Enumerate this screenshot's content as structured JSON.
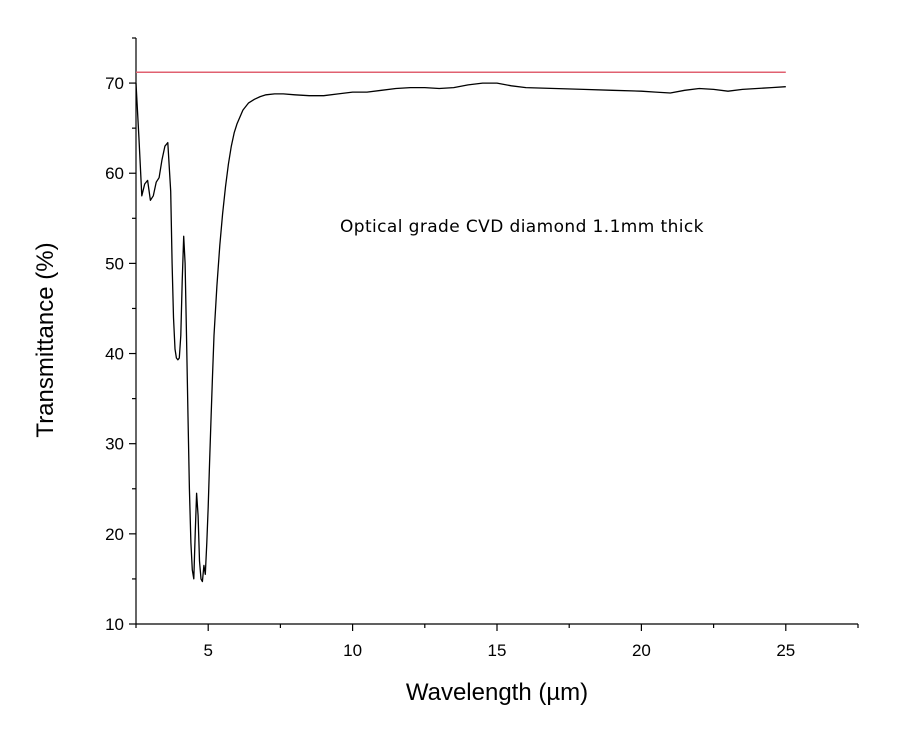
{
  "chart_data": {
    "type": "line",
    "xlabel": "Wavelength (µm)",
    "ylabel": "Transmittance (%)",
    "xlim": [
      2.5,
      27.5
    ],
    "ylim": [
      10,
      75
    ],
    "xticks": [
      5,
      10,
      15,
      20,
      25
    ],
    "xtick_labels": [
      "5",
      "10",
      "15",
      "20",
      "25"
    ],
    "yticks": [
      10,
      20,
      30,
      40,
      50,
      60,
      70
    ],
    "ytick_labels": [
      "10",
      "20",
      "30",
      "40",
      "50",
      "60",
      "70"
    ],
    "grid": false,
    "annotation": "Optical grade CVD diamond 1.1mm thick",
    "colors": {
      "measured": "#000000",
      "reference": "#e06070"
    },
    "series": [
      {
        "x": [
          2.5,
          2.6,
          2.7,
          2.8,
          2.9,
          3.0,
          3.1,
          3.2,
          3.3,
          3.4,
          3.5,
          3.6,
          3.7,
          3.75,
          3.8,
          3.85,
          3.9,
          3.95,
          4.0,
          4.05,
          4.1,
          4.15,
          4.2,
          4.25,
          4.3,
          4.35,
          4.4,
          4.45,
          4.5,
          4.55,
          4.6,
          4.65,
          4.7,
          4.75,
          4.8,
          4.85,
          4.9,
          4.95,
          5.0,
          5.05,
          5.1,
          5.15,
          5.2,
          5.3,
          5.4,
          5.5,
          5.6,
          5.7,
          5.8,
          5.9,
          6.0,
          6.2,
          6.4,
          6.6,
          6.8,
          7.0,
          7.3,
          7.6,
          8.0,
          8.5,
          9.0,
          9.5,
          10.0,
          10.5,
          11.0,
          11.5,
          12.0,
          12.5,
          13.0,
          13.5,
          14.0,
          14.5,
          15.0,
          15.5,
          16.0,
          17.0,
          18.0,
          19.0,
          20.0,
          20.5,
          21.0,
          21.5,
          22.0,
          22.5,
          23.0,
          23.5,
          24.0,
          24.5,
          25.0
        ],
        "values": [
          70.0,
          64.0,
          57.5,
          58.8,
          59.2,
          57.0,
          57.5,
          59.0,
          59.5,
          61.5,
          63.0,
          63.4,
          58.0,
          50.0,
          44.0,
          40.5,
          39.5,
          39.3,
          39.5,
          42.0,
          48.0,
          53.0,
          50.0,
          42.0,
          33.0,
          25.0,
          19.0,
          16.0,
          15.0,
          20.0,
          24.5,
          22.0,
          17.0,
          15.0,
          14.7,
          16.5,
          15.5,
          19.0,
          23.0,
          28.0,
          33.0,
          37.5,
          42.0,
          47.5,
          52.0,
          55.5,
          58.5,
          61.0,
          63.0,
          64.5,
          65.5,
          67.0,
          67.8,
          68.2,
          68.5,
          68.7,
          68.8,
          68.8,
          68.7,
          68.6,
          68.6,
          68.8,
          69.0,
          69.0,
          69.2,
          69.4,
          69.5,
          69.5,
          69.4,
          69.5,
          69.8,
          70.0,
          70.0,
          69.7,
          69.5,
          69.4,
          69.3,
          69.2,
          69.1,
          69.0,
          68.9,
          69.2,
          69.4,
          69.3,
          69.1,
          69.3,
          69.4,
          69.5,
          69.6
        ]
      },
      {
        "x": [
          2.5,
          25.0
        ],
        "values": [
          71.2,
          71.2
        ]
      }
    ]
  }
}
